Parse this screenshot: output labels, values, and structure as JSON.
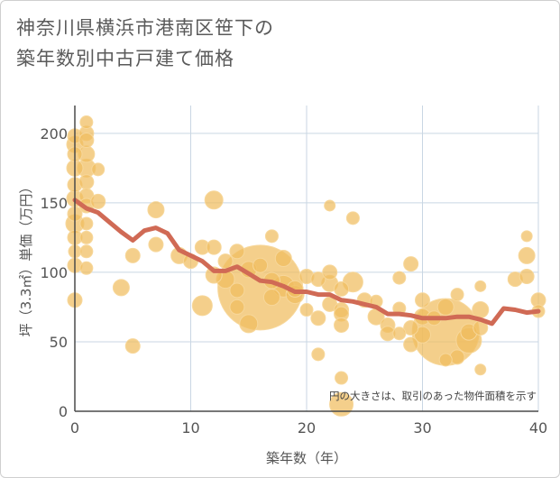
{
  "title": {
    "line1": "神奈川県横浜市港南区笹下の",
    "line2": "築年数別中古戸建て価格"
  },
  "chart_data": {
    "type": "scatter",
    "xlabel": "築年数（年）",
    "ylabel": "坪（3.3㎡）単価（万円）",
    "xlim": [
      0,
      40
    ],
    "ylim": [
      0,
      220
    ],
    "xticks": [
      0,
      10,
      20,
      30,
      40
    ],
    "yticks": [
      0,
      50,
      100,
      150,
      200
    ],
    "grid": true,
    "note": "円の大きさは、取引のあった物件面積を示す",
    "colors": {
      "bubble": "#f0bc5e",
      "bubble_edge": "#f7d79a",
      "line": "#d06a55",
      "grid": "#c9d6e3",
      "axis": "#4a4a4a"
    },
    "points": [
      {
        "x": 0,
        "y": 198,
        "s": 8
      },
      {
        "x": 0,
        "y": 192,
        "s": 9
      },
      {
        "x": 0,
        "y": 185,
        "s": 8
      },
      {
        "x": 0,
        "y": 175,
        "s": 9
      },
      {
        "x": 0,
        "y": 163,
        "s": 8
      },
      {
        "x": 0,
        "y": 153,
        "s": 9
      },
      {
        "x": 0,
        "y": 142,
        "s": 8
      },
      {
        "x": 0,
        "y": 135,
        "s": 10
      },
      {
        "x": 0,
        "y": 125,
        "s": 8
      },
      {
        "x": 0,
        "y": 115,
        "s": 7
      },
      {
        "x": 0,
        "y": 105,
        "s": 8
      },
      {
        "x": 0,
        "y": 80,
        "s": 8
      },
      {
        "x": 1,
        "y": 208,
        "s": 7
      },
      {
        "x": 1,
        "y": 200,
        "s": 8
      },
      {
        "x": 1,
        "y": 195,
        "s": 8
      },
      {
        "x": 1,
        "y": 185,
        "s": 9
      },
      {
        "x": 1,
        "y": 175,
        "s": 10
      },
      {
        "x": 1,
        "y": 165,
        "s": 8
      },
      {
        "x": 1,
        "y": 155,
        "s": 8
      },
      {
        "x": 1,
        "y": 148,
        "s": 8
      },
      {
        "x": 1,
        "y": 135,
        "s": 7
      },
      {
        "x": 1,
        "y": 125,
        "s": 7
      },
      {
        "x": 1,
        "y": 115,
        "s": 7
      },
      {
        "x": 1,
        "y": 103,
        "s": 7
      },
      {
        "x": 2,
        "y": 174,
        "s": 7
      },
      {
        "x": 2,
        "y": 151,
        "s": 8
      },
      {
        "x": 4,
        "y": 89,
        "s": 9
      },
      {
        "x": 5,
        "y": 112,
        "s": 8
      },
      {
        "x": 5,
        "y": 47,
        "s": 8
      },
      {
        "x": 7,
        "y": 145,
        "s": 9
      },
      {
        "x": 7,
        "y": 120,
        "s": 8
      },
      {
        "x": 9,
        "y": 112,
        "s": 9
      },
      {
        "x": 10,
        "y": 108,
        "s": 8
      },
      {
        "x": 11,
        "y": 118,
        "s": 8
      },
      {
        "x": 11,
        "y": 76,
        "s": 11
      },
      {
        "x": 12,
        "y": 152,
        "s": 10
      },
      {
        "x": 12,
        "y": 118,
        "s": 8
      },
      {
        "x": 12,
        "y": 98,
        "s": 9
      },
      {
        "x": 13,
        "y": 108,
        "s": 8
      },
      {
        "x": 13,
        "y": 95,
        "s": 10
      },
      {
        "x": 14,
        "y": 115,
        "s": 8
      },
      {
        "x": 14,
        "y": 87,
        "s": 8
      },
      {
        "x": 14,
        "y": 75,
        "s": 8
      },
      {
        "x": 15,
        "y": 102,
        "s": 9
      },
      {
        "x": 15,
        "y": 63,
        "s": 10
      },
      {
        "x": 16,
        "y": 89,
        "s": 47
      },
      {
        "x": 16,
        "y": 105,
        "s": 8
      },
      {
        "x": 17,
        "y": 126,
        "s": 7
      },
      {
        "x": 17,
        "y": 94,
        "s": 9
      },
      {
        "x": 17,
        "y": 82,
        "s": 9
      },
      {
        "x": 18,
        "y": 110,
        "s": 9
      },
      {
        "x": 18,
        "y": 90,
        "s": 12
      },
      {
        "x": 19,
        "y": 88,
        "s": 9
      },
      {
        "x": 19,
        "y": 84,
        "s": 10
      },
      {
        "x": 20,
        "y": 97,
        "s": 8
      },
      {
        "x": 20,
        "y": 73,
        "s": 7
      },
      {
        "x": 21,
        "y": 95,
        "s": 8
      },
      {
        "x": 21,
        "y": 67,
        "s": 8
      },
      {
        "x": 21,
        "y": 41,
        "s": 7
      },
      {
        "x": 22,
        "y": 148,
        "s": 6
      },
      {
        "x": 22,
        "y": 100,
        "s": 8
      },
      {
        "x": 22,
        "y": 92,
        "s": 9
      },
      {
        "x": 22,
        "y": 77,
        "s": 8
      },
      {
        "x": 23,
        "y": 88,
        "s": 8
      },
      {
        "x": 23,
        "y": 73,
        "s": 8
      },
      {
        "x": 23,
        "y": 70,
        "s": 8
      },
      {
        "x": 23,
        "y": 62,
        "s": 8
      },
      {
        "x": 23,
        "y": 24,
        "s": 7
      },
      {
        "x": 23,
        "y": 5,
        "s": 13
      },
      {
        "x": 24,
        "y": 139,
        "s": 7
      },
      {
        "x": 24,
        "y": 93,
        "s": 11
      },
      {
        "x": 25,
        "y": 80,
        "s": 8
      },
      {
        "x": 26,
        "y": 68,
        "s": 9
      },
      {
        "x": 26,
        "y": 79,
        "s": 7
      },
      {
        "x": 27,
        "y": 62,
        "s": 8
      },
      {
        "x": 27,
        "y": 56,
        "s": 8
      },
      {
        "x": 28,
        "y": 96,
        "s": 7
      },
      {
        "x": 28,
        "y": 74,
        "s": 7
      },
      {
        "x": 28,
        "y": 56,
        "s": 7
      },
      {
        "x": 29,
        "y": 106,
        "s": 8
      },
      {
        "x": 29,
        "y": 60,
        "s": 8
      },
      {
        "x": 29,
        "y": 48,
        "s": 8
      },
      {
        "x": 30,
        "y": 80,
        "s": 8
      },
      {
        "x": 30,
        "y": 68,
        "s": 9
      },
      {
        "x": 30,
        "y": 55,
        "s": 9
      },
      {
        "x": 31,
        "y": 67,
        "s": 8
      },
      {
        "x": 32,
        "y": 57,
        "s": 37
      },
      {
        "x": 32,
        "y": 75,
        "s": 9
      },
      {
        "x": 32,
        "y": 37,
        "s": 7
      },
      {
        "x": 33,
        "y": 84,
        "s": 7
      },
      {
        "x": 33,
        "y": 39,
        "s": 8
      },
      {
        "x": 34,
        "y": 51,
        "s": 14
      },
      {
        "x": 34,
        "y": 57,
        "s": 9
      },
      {
        "x": 35,
        "y": 73,
        "s": 9
      },
      {
        "x": 35,
        "y": 60,
        "s": 8
      },
      {
        "x": 35,
        "y": 90,
        "s": 6
      },
      {
        "x": 35,
        "y": 30,
        "s": 6
      },
      {
        "x": 38,
        "y": 95,
        "s": 8
      },
      {
        "x": 39,
        "y": 126,
        "s": 6
      },
      {
        "x": 39,
        "y": 112,
        "s": 9
      },
      {
        "x": 39,
        "y": 97,
        "s": 8
      },
      {
        "x": 40,
        "y": 80,
        "s": 8
      },
      {
        "x": 40,
        "y": 72,
        "s": 7
      }
    ],
    "trend": {
      "x": [
        0,
        1,
        2,
        3,
        4,
        5,
        6,
        7,
        8,
        9,
        10,
        11,
        12,
        13,
        14,
        15,
        16,
        17,
        18,
        19,
        20,
        21,
        22,
        23,
        24,
        25,
        26,
        27,
        28,
        29,
        30,
        31,
        32,
        33,
        34,
        35,
        36,
        37,
        38,
        39,
        40
      ],
      "y": [
        152,
        146,
        143,
        136,
        129,
        123,
        130,
        132,
        128,
        116,
        112,
        108,
        101,
        101,
        104,
        99,
        94,
        93,
        90,
        86,
        86,
        84,
        84,
        80,
        79,
        77,
        75,
        70,
        70,
        69,
        67,
        67,
        67,
        68,
        68,
        66,
        63,
        74,
        73,
        71,
        72
      ]
    }
  }
}
